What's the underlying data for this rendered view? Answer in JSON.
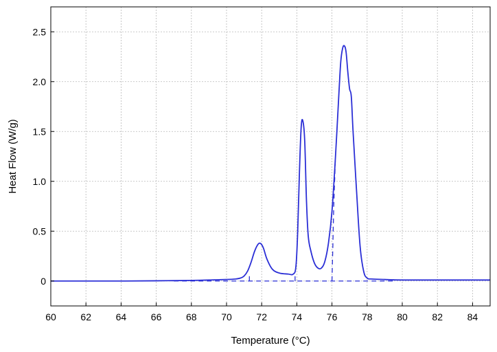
{
  "chart_data": {
    "type": "line",
    "title": "",
    "xlabel": "Temperature (°C)",
    "ylabel": "Heat Flow (W/g)",
    "xlim": [
      60,
      85
    ],
    "ylim": [
      -0.25,
      2.75
    ],
    "xticks": [
      60,
      62,
      64,
      66,
      68,
      70,
      72,
      74,
      76,
      78,
      80,
      82,
      84
    ],
    "yticks": [
      0,
      0.5,
      1.0,
      1.5,
      2.0,
      2.5
    ],
    "ytick_labels": [
      "0",
      "0.5",
      "1.0",
      "1.5",
      "2.0",
      "2.5"
    ],
    "grid": true,
    "line_color": "#2a2ed6",
    "series": [
      {
        "style": "solid",
        "x": [
          60,
          62,
          64,
          66,
          67,
          68,
          69,
          70,
          70.5,
          70.8,
          71.0,
          71.2,
          71.4,
          71.6,
          71.8,
          71.95,
          72.1,
          72.3,
          72.6,
          73.0,
          73.5,
          73.8,
          73.95,
          74.05,
          74.15,
          74.25,
          74.35,
          74.45,
          74.55,
          74.65,
          74.8,
          75.0,
          75.2,
          75.4,
          75.6,
          75.8,
          76.0,
          76.2,
          76.4,
          76.5,
          76.6,
          76.7,
          76.8,
          76.9,
          77.0,
          77.1,
          77.2,
          77.4,
          77.6,
          77.8,
          78.0,
          78.3,
          79.0,
          80,
          82,
          84,
          85
        ],
        "y": [
          0,
          0,
          0,
          0.002,
          0.004,
          0.006,
          0.01,
          0.015,
          0.02,
          0.03,
          0.05,
          0.1,
          0.19,
          0.3,
          0.37,
          0.375,
          0.33,
          0.22,
          0.12,
          0.08,
          0.07,
          0.07,
          0.15,
          0.5,
          1.1,
          1.55,
          1.6,
          1.4,
          0.8,
          0.45,
          0.3,
          0.18,
          0.13,
          0.13,
          0.2,
          0.38,
          0.7,
          1.25,
          1.9,
          2.2,
          2.33,
          2.36,
          2.3,
          2.1,
          1.93,
          1.85,
          1.5,
          0.9,
          0.35,
          0.1,
          0.03,
          0.02,
          0.015,
          0.01,
          0.01,
          0.01,
          0.01
        ]
      },
      {
        "style": "dashed",
        "x": [
          67,
          71.3,
          73.9,
          76.0,
          79.5
        ],
        "y": [
          0,
          0,
          0,
          0,
          0
        ]
      },
      {
        "style": "dashed",
        "x": [
          71.3,
          71.3
        ],
        "y": [
          0,
          0.08
        ]
      },
      {
        "style": "dashed",
        "x": [
          73.9,
          73.9
        ],
        "y": [
          0,
          0.08
        ]
      },
      {
        "style": "dashed",
        "x": [
          76.0,
          76.05,
          76.1,
          76.2
        ],
        "y": [
          0,
          0.35,
          0.75,
          1.25
        ]
      }
    ]
  }
}
